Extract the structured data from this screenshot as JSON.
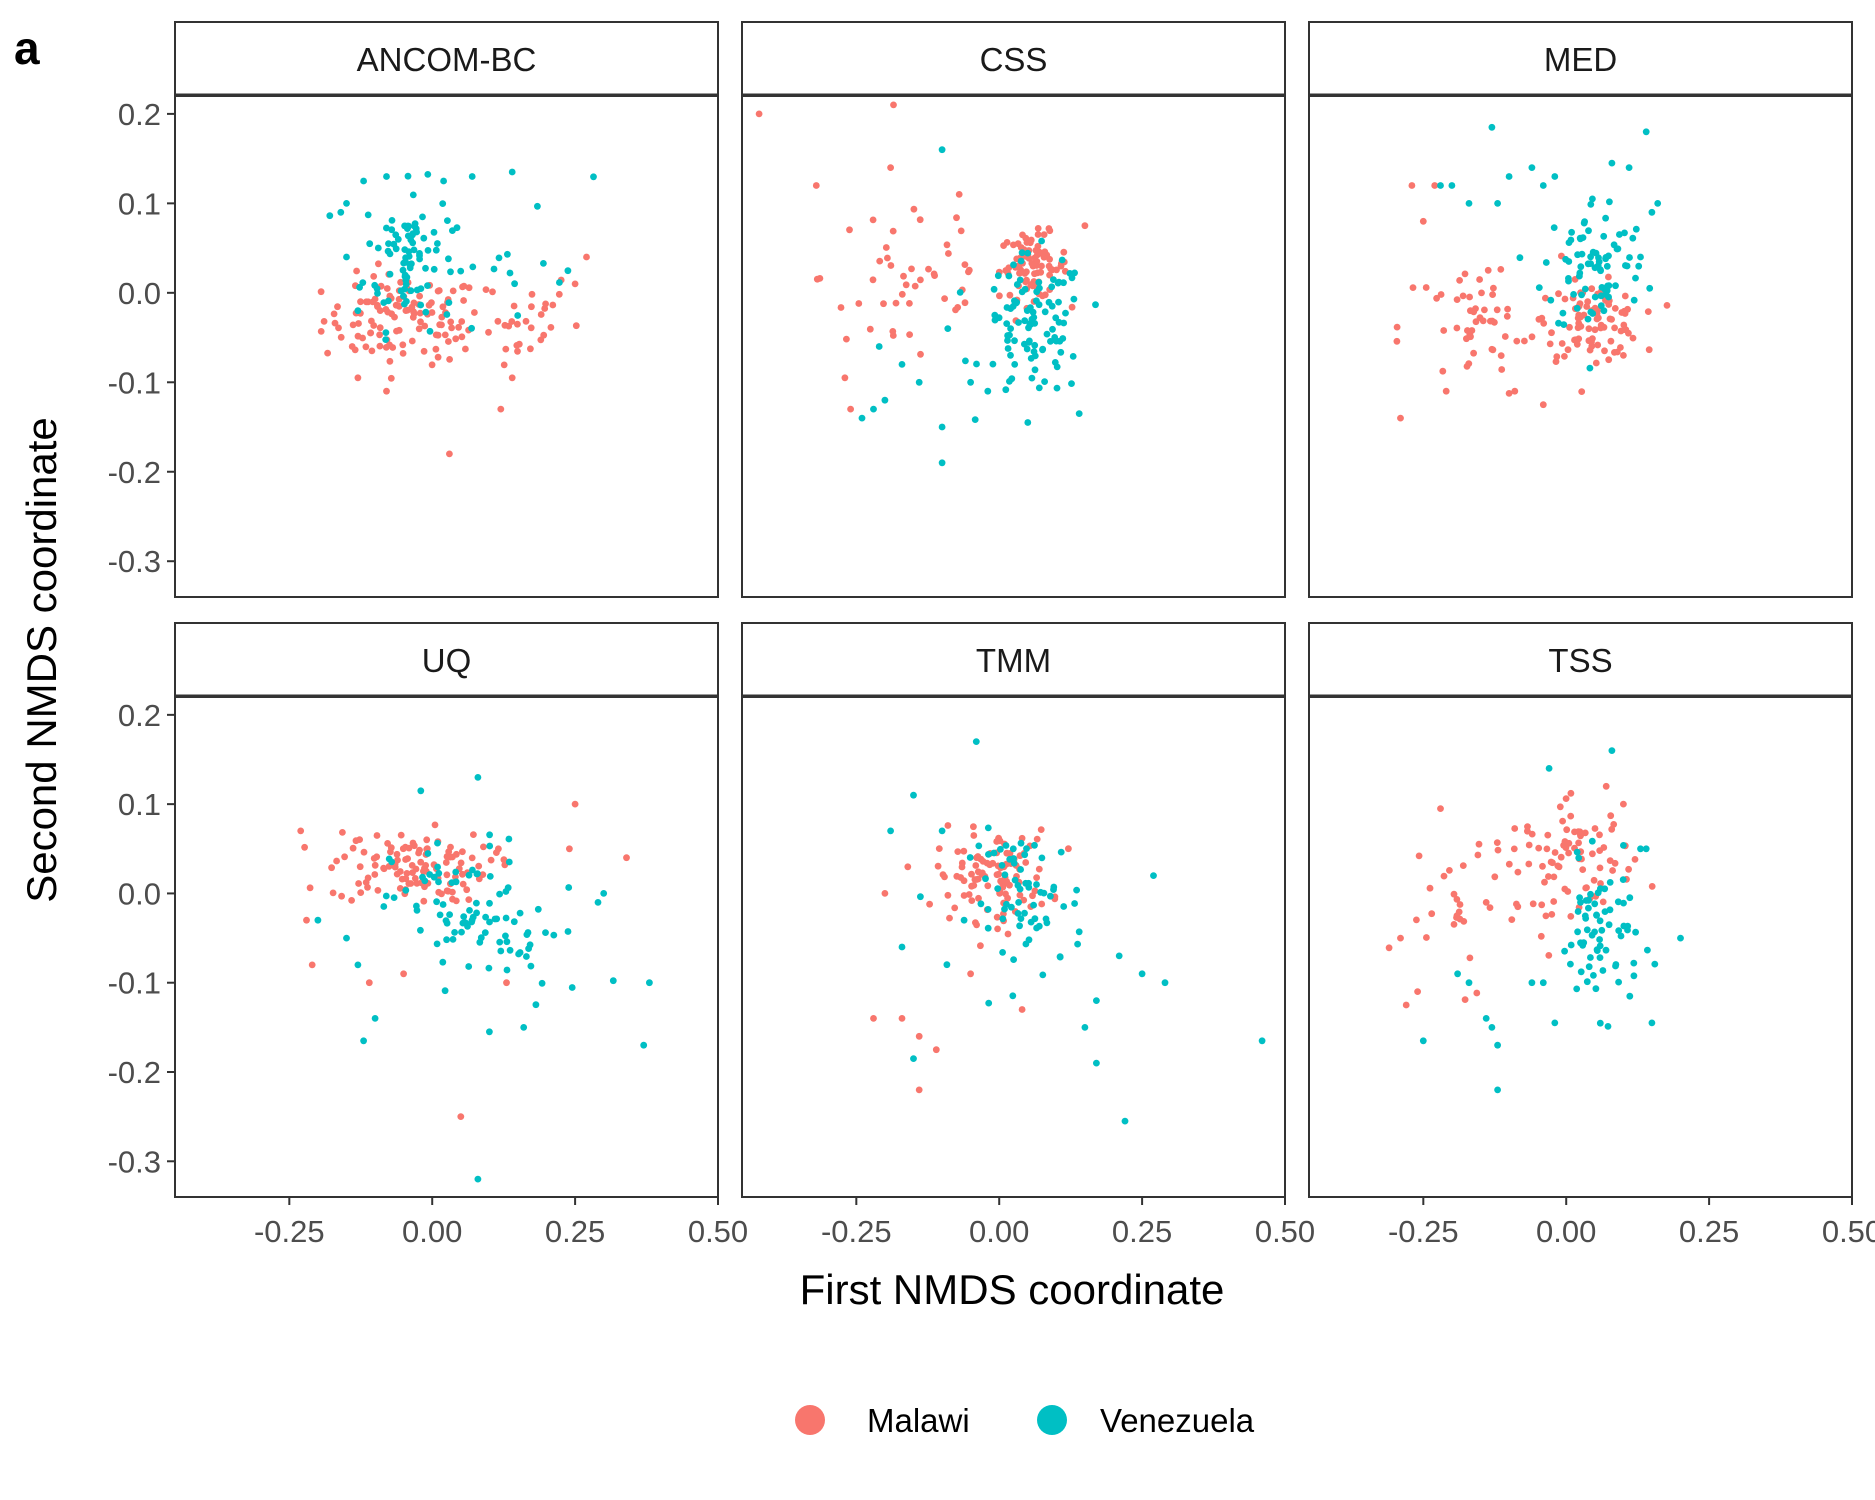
{
  "chart_data": {
    "type": "scatter",
    "panel_letter": "a",
    "xlabel": "First NMDS coordinate",
    "ylabel": "Second NMDS coordinate",
    "xlim": [
      -0.45,
      0.5
    ],
    "ylim": [
      -0.34,
      0.22
    ],
    "x_ticks": [
      -0.25,
      0.0,
      0.25,
      0.5
    ],
    "x_tick_labels": [
      "-0.25",
      "0.00",
      "0.25",
      "0.50"
    ],
    "y_ticks": [
      0.2,
      0.1,
      0.0,
      -0.1,
      -0.2,
      -0.3
    ],
    "y_tick_labels": [
      "0.2",
      "0.1",
      "0.0",
      "-0.1",
      "-0.2",
      "-0.3"
    ],
    "grid": false,
    "legend": {
      "position": "bottom",
      "entries": [
        {
          "label": "Malawi",
          "color": "#F8766D"
        },
        {
          "label": "Venezuela",
          "color": "#00BFC4"
        }
      ]
    },
    "panels": [
      {
        "title": "ANCOM-BC",
        "series": [
          {
            "name": "Malawi",
            "color": "#F8766D",
            "centers": [
              [
                -0.05,
                -0.03,
                0.07,
                0.025,
                110
              ],
              [
                0.12,
                -0.03,
                0.07,
                0.03,
                35
              ]
            ],
            "extra": [
              [
                0.03,
                -0.18
              ],
              [
                0.12,
                -0.13
              ],
              [
                -0.13,
                -0.095
              ],
              [
                -0.08,
                -0.11
              ],
              [
                0.14,
                -0.095
              ],
              [
                0.27,
                0.04
              ],
              [
                0.25,
                0.01
              ],
              [
                -0.14,
                -0.06
              ]
            ]
          },
          {
            "name": "Venezuela",
            "color": "#00BFC4",
            "centers": [
              [
                -0.04,
                0.04,
                0.04,
                0.04,
                90
              ],
              [
                0.18,
                0.06,
                0.05,
                0.04,
                12
              ]
            ],
            "extra": [
              [
                -0.15,
                0.1
              ],
              [
                -0.16,
                0.09
              ],
              [
                0.14,
                0.135
              ],
              [
                0.07,
                0.13
              ],
              [
                -0.12,
                0.125
              ],
              [
                0.02,
                0.125
              ],
              [
                -0.08,
                0.13
              ],
              [
                -0.15,
                0.04
              ],
              [
                -0.13,
                -0.02
              ]
            ]
          }
        ]
      },
      {
        "title": "CSS",
        "series": [
          {
            "name": "Malawi",
            "color": "#F8766D",
            "centers": [
              [
                0.06,
                0.03,
                0.03,
                0.018,
                85
              ],
              [
                -0.15,
                0.02,
                0.08,
                0.06,
                45
              ]
            ],
            "extra": [
              [
                -0.42,
                0.2
              ],
              [
                -0.32,
                0.12
              ],
              [
                -0.19,
                0.14
              ],
              [
                -0.27,
                -0.095
              ],
              [
                -0.26,
                -0.13
              ],
              [
                -0.07,
                0.11
              ],
              [
                0.15,
                0.075
              ]
            ]
          },
          {
            "name": "Venezuela",
            "color": "#00BFC4",
            "centers": [
              [
                0.06,
                -0.04,
                0.045,
                0.04,
                100
              ]
            ],
            "extra": [
              [
                -0.1,
                0.16
              ],
              [
                -0.1,
                -0.15
              ],
              [
                -0.1,
                -0.19
              ],
              [
                -0.24,
                -0.14
              ],
              [
                -0.22,
                -0.13
              ],
              [
                -0.2,
                -0.12
              ],
              [
                -0.17,
                -0.08
              ],
              [
                -0.14,
                -0.1
              ],
              [
                -0.05,
                -0.1
              ],
              [
                -0.02,
                -0.11
              ],
              [
                0.05,
                -0.145
              ],
              [
                0.14,
                -0.135
              ],
              [
                -0.21,
                -0.06
              ],
              [
                -0.09,
                -0.04
              ]
            ]
          }
        ]
      },
      {
        "title": "MED",
        "series": [
          {
            "name": "Malawi",
            "color": "#F8766D",
            "centers": [
              [
                0.05,
                -0.03,
                0.04,
                0.02,
                90
              ],
              [
                -0.15,
                -0.04,
                0.07,
                0.04,
                55
              ]
            ],
            "extra": [
              [
                -0.29,
                -0.14
              ],
              [
                -0.27,
                0.12
              ],
              [
                -0.23,
                0.12
              ],
              [
                -0.25,
                0.08
              ],
              [
                -0.04,
                -0.125
              ],
              [
                -0.09,
                -0.11
              ],
              [
                -0.21,
                -0.11
              ],
              [
                0.1,
                -0.07
              ]
            ]
          },
          {
            "name": "Venezuela",
            "color": "#00BFC4",
            "centers": [
              [
                0.05,
                0.03,
                0.045,
                0.04,
                80
              ]
            ],
            "extra": [
              [
                -0.13,
                0.185
              ],
              [
                -0.12,
                0.1
              ],
              [
                -0.06,
                0.14
              ],
              [
                -0.22,
                0.12
              ],
              [
                -0.2,
                0.12
              ],
              [
                -0.17,
                0.1
              ],
              [
                0.14,
                0.18
              ],
              [
                0.16,
                0.1
              ],
              [
                0.15,
                0.09
              ],
              [
                0.13,
                0.04
              ],
              [
                -0.02,
                0.13
              ],
              [
                -0.04,
                0.12
              ],
              [
                0.08,
                0.145
              ],
              [
                0.11,
                0.14
              ],
              [
                -0.1,
                0.13
              ]
            ]
          }
        ]
      },
      {
        "title": "UQ",
        "series": [
          {
            "name": "Malawi",
            "color": "#F8766D",
            "centers": [
              [
                -0.04,
                0.03,
                0.07,
                0.02,
                115
              ]
            ],
            "extra": [
              [
                0.05,
                -0.25
              ],
              [
                0.25,
                0.1
              ],
              [
                0.34,
                0.04
              ],
              [
                0.24,
                0.05
              ],
              [
                -0.23,
                0.07
              ],
              [
                -0.21,
                -0.08
              ],
              [
                -0.22,
                -0.03
              ],
              [
                -0.11,
                -0.1
              ],
              [
                0.13,
                -0.1
              ],
              [
                -0.05,
                -0.09
              ]
            ]
          },
          {
            "name": "Venezuela",
            "color": "#00BFC4",
            "centers": [
              [
                0.05,
                -0.02,
                0.06,
                0.04,
                70
              ],
              [
                0.18,
                -0.06,
                0.06,
                0.04,
                22
              ]
            ],
            "extra": [
              [
                0.08,
                -0.32
              ],
              [
                0.37,
                -0.17
              ],
              [
                0.38,
                -0.1
              ],
              [
                0.3,
                0.0
              ],
              [
                0.29,
                -0.01
              ],
              [
                -0.12,
                -0.165
              ],
              [
                -0.1,
                -0.14
              ],
              [
                0.1,
                -0.155
              ],
              [
                0.16,
                -0.15
              ],
              [
                0.08,
                0.13
              ],
              [
                -0.02,
                0.115
              ],
              [
                -0.2,
                -0.03
              ],
              [
                -0.15,
                -0.05
              ],
              [
                -0.13,
                -0.08
              ]
            ]
          }
        ]
      },
      {
        "title": "TMM",
        "series": [
          {
            "name": "Malawi",
            "color": "#F8766D",
            "centers": [
              [
                -0.01,
                0.02,
                0.05,
                0.025,
                105
              ]
            ],
            "extra": [
              [
                -0.14,
                -0.22
              ],
              [
                -0.11,
                -0.175
              ],
              [
                -0.14,
                -0.16
              ],
              [
                -0.17,
                -0.14
              ],
              [
                -0.22,
                -0.14
              ],
              [
                0.04,
                -0.13
              ],
              [
                -0.05,
                -0.09
              ],
              [
                -0.2,
                0.0
              ]
            ]
          },
          {
            "name": "Venezuela",
            "color": "#00BFC4",
            "centers": [
              [
                0.05,
                -0.01,
                0.05,
                0.04,
                70
              ]
            ],
            "extra": [
              [
                -0.04,
                0.17
              ],
              [
                0.46,
                -0.165
              ],
              [
                0.22,
                -0.255
              ],
              [
                0.17,
                -0.19
              ],
              [
                0.15,
                -0.15
              ],
              [
                -0.15,
                -0.185
              ],
              [
                0.25,
                -0.09
              ],
              [
                0.29,
                -0.1
              ],
              [
                0.27,
                0.02
              ],
              [
                0.21,
                -0.07
              ],
              [
                -0.19,
                0.07
              ],
              [
                -0.15,
                0.11
              ],
              [
                -0.1,
                0.07
              ],
              [
                -0.17,
                -0.06
              ],
              [
                0.17,
                -0.12
              ]
            ]
          }
        ]
      },
      {
        "title": "TSS",
        "series": [
          {
            "name": "Malawi",
            "color": "#F8766D",
            "centers": [
              [
                0.02,
                0.04,
                0.05,
                0.03,
                70
              ],
              [
                -0.17,
                0.0,
                0.07,
                0.05,
                40
              ]
            ],
            "extra": [
              [
                -0.26,
                -0.11
              ],
              [
                -0.28,
                -0.125
              ],
              [
                -0.29,
                -0.05
              ],
              [
                -0.22,
                0.095
              ],
              [
                -0.14,
                -0.01
              ],
              [
                0.07,
                0.12
              ],
              [
                0.1,
                0.1
              ]
            ]
          },
          {
            "name": "Venezuela",
            "color": "#00BFC4",
            "centers": [
              [
                0.06,
                -0.05,
                0.035,
                0.04,
                70
              ]
            ],
            "extra": [
              [
                0.08,
                0.16
              ],
              [
                -0.03,
                0.14
              ],
              [
                -0.12,
                -0.22
              ],
              [
                -0.12,
                -0.17
              ],
              [
                -0.13,
                -0.15
              ],
              [
                -0.14,
                -0.14
              ],
              [
                -0.25,
                -0.165
              ],
              [
                -0.02,
                -0.145
              ],
              [
                0.15,
                -0.145
              ],
              [
                0.2,
                -0.05
              ],
              [
                -0.04,
                -0.1
              ],
              [
                -0.06,
                -0.1
              ],
              [
                -0.17,
                -0.1
              ],
              [
                -0.19,
                -0.09
              ],
              [
                0.14,
                0.05
              ],
              [
                0.13,
                0.05
              ]
            ]
          }
        ]
      }
    ]
  }
}
